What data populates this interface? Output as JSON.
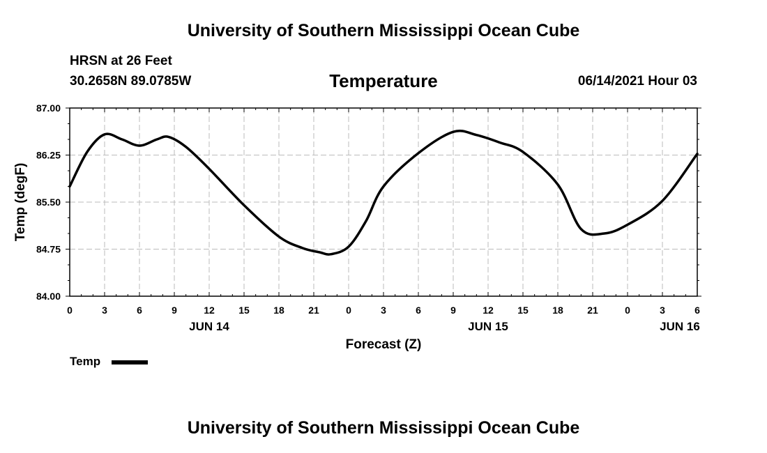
{
  "header": {
    "title_top": "University of Southern Mississippi Ocean Cube",
    "station": "HRSN at 26 Feet",
    "coords": "30.2658N  89.0785W",
    "variable": "Temperature",
    "datetime": "06/14/2021 Hour 03"
  },
  "footer": {
    "title_bottom": "University of Southern Mississippi Ocean Cube"
  },
  "colors": {
    "line": "#000000",
    "grid": "#bbbbbb"
  },
  "chart_data": {
    "type": "line",
    "title": "Temperature",
    "xlabel": "Forecast (Z)",
    "ylabel": "Temp (degF)",
    "xlim": [
      0,
      54
    ],
    "ylim": [
      84.0,
      87.0
    ],
    "grid": true,
    "legend_position": "bottom-left",
    "x_ticks": [
      {
        "x": 0,
        "label": "0"
      },
      {
        "x": 3,
        "label": "3"
      },
      {
        "x": 6,
        "label": "6"
      },
      {
        "x": 9,
        "label": "9"
      },
      {
        "x": 12,
        "label": "12"
      },
      {
        "x": 15,
        "label": "15"
      },
      {
        "x": 18,
        "label": "18"
      },
      {
        "x": 21,
        "label": "21"
      },
      {
        "x": 24,
        "label": "0"
      },
      {
        "x": 27,
        "label": "3"
      },
      {
        "x": 30,
        "label": "6"
      },
      {
        "x": 33,
        "label": "9"
      },
      {
        "x": 36,
        "label": "12"
      },
      {
        "x": 39,
        "label": "15"
      },
      {
        "x": 42,
        "label": "18"
      },
      {
        "x": 45,
        "label": "21"
      },
      {
        "x": 48,
        "label": "0"
      },
      {
        "x": 51,
        "label": "3"
      },
      {
        "x": 54,
        "label": "6"
      }
    ],
    "date_labels": [
      {
        "x": 12,
        "label": "JUN 14"
      },
      {
        "x": 36,
        "label": "JUN 15"
      },
      {
        "x": 52.5,
        "label": "JUN 16"
      }
    ],
    "y_ticks": [
      {
        "y": 84.0,
        "label": "84.00"
      },
      {
        "y": 84.75,
        "label": "84.75"
      },
      {
        "y": 85.5,
        "label": "85.50"
      },
      {
        "y": 86.25,
        "label": "86.25"
      },
      {
        "y": 87.0,
        "label": "87.00"
      }
    ],
    "series": [
      {
        "name": "Temp",
        "x": [
          0,
          1.5,
          3,
          4.5,
          6,
          7.5,
          8.5,
          10,
          12,
          15,
          18,
          20,
          21.5,
          22.5,
          24,
          25.5,
          27,
          30,
          33,
          35,
          37,
          39,
          42,
          44,
          46,
          48,
          51,
          54
        ],
        "y": [
          85.75,
          86.3,
          86.58,
          86.5,
          86.4,
          86.5,
          86.54,
          86.38,
          86.03,
          85.45,
          84.95,
          84.77,
          84.7,
          84.67,
          84.79,
          85.2,
          85.75,
          86.28,
          86.62,
          86.57,
          86.45,
          86.3,
          85.78,
          85.07,
          85.0,
          85.14,
          85.52,
          86.27
        ]
      }
    ]
  }
}
